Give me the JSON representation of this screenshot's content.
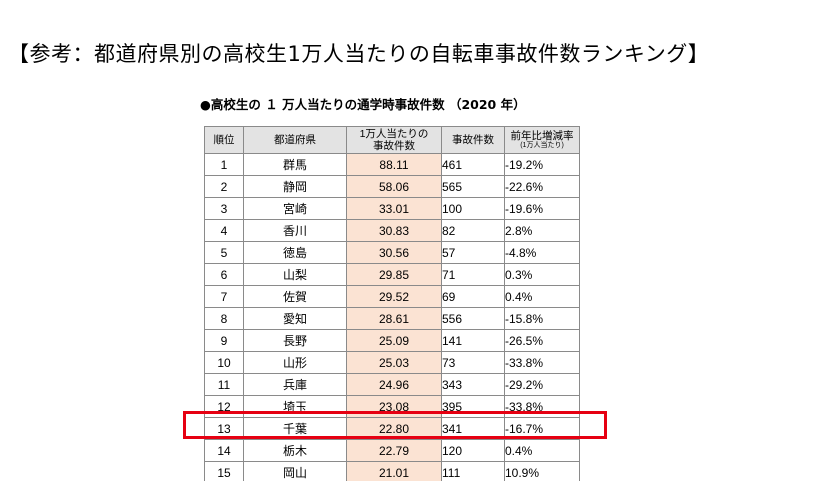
{
  "page_title": "【参考：都道府県別の高校生1万人当たりの自転車事故件数ランキング】",
  "table_title": "●高校生の １ 万人当たりの通学時事故件数 （2020 年）",
  "table": {
    "headers": {
      "rank": "順位",
      "prefecture": "都道府県",
      "rate_line1": "1万人当たりの",
      "rate_line2": "事故件数",
      "count": "事故件数",
      "change_line1": "前年比増減率",
      "change_line2": "(1万人当たり)"
    },
    "rows": [
      {
        "rank": "1",
        "prefecture": "群馬",
        "rate": "88.11",
        "count": "461",
        "change": "-19.2%"
      },
      {
        "rank": "2",
        "prefecture": "静岡",
        "rate": "58.06",
        "count": "565",
        "change": "-22.6%"
      },
      {
        "rank": "3",
        "prefecture": "宮崎",
        "rate": "33.01",
        "count": "100",
        "change": "-19.6%"
      },
      {
        "rank": "4",
        "prefecture": "香川",
        "rate": "30.83",
        "count": "82",
        "change": "2.8%"
      },
      {
        "rank": "5",
        "prefecture": "徳島",
        "rate": "30.56",
        "count": "57",
        "change": "-4.8%"
      },
      {
        "rank": "6",
        "prefecture": "山梨",
        "rate": "29.85",
        "count": "71",
        "change": "0.3%"
      },
      {
        "rank": "7",
        "prefecture": "佐賀",
        "rate": "29.52",
        "count": "69",
        "change": "0.4%"
      },
      {
        "rank": "8",
        "prefecture": "愛知",
        "rate": "28.61",
        "count": "556",
        "change": "-15.8%"
      },
      {
        "rank": "9",
        "prefecture": "長野",
        "rate": "25.09",
        "count": "141",
        "change": "-26.5%"
      },
      {
        "rank": "10",
        "prefecture": "山形",
        "rate": "25.03",
        "count": "73",
        "change": "-33.8%"
      },
      {
        "rank": "11",
        "prefecture": "兵庫",
        "rate": "24.96",
        "count": "343",
        "change": "-29.2%"
      },
      {
        "rank": "12",
        "prefecture": "埼玉",
        "rate": "23.08",
        "count": "395",
        "change": "-33.8%"
      },
      {
        "rank": "13",
        "prefecture": "千葉",
        "rate": "22.80",
        "count": "341",
        "change": "-16.7%"
      },
      {
        "rank": "14",
        "prefecture": "栃木",
        "rate": "22.79",
        "count": "120",
        "change": "0.4%"
      },
      {
        "rank": "15",
        "prefecture": "岡山",
        "rate": "21.01",
        "count": "111",
        "change": "10.9%"
      }
    ]
  },
  "highlight_color": "#e60012",
  "rate_column_color": "#fbe3d3",
  "header_bg_color": "#e3e3e3"
}
